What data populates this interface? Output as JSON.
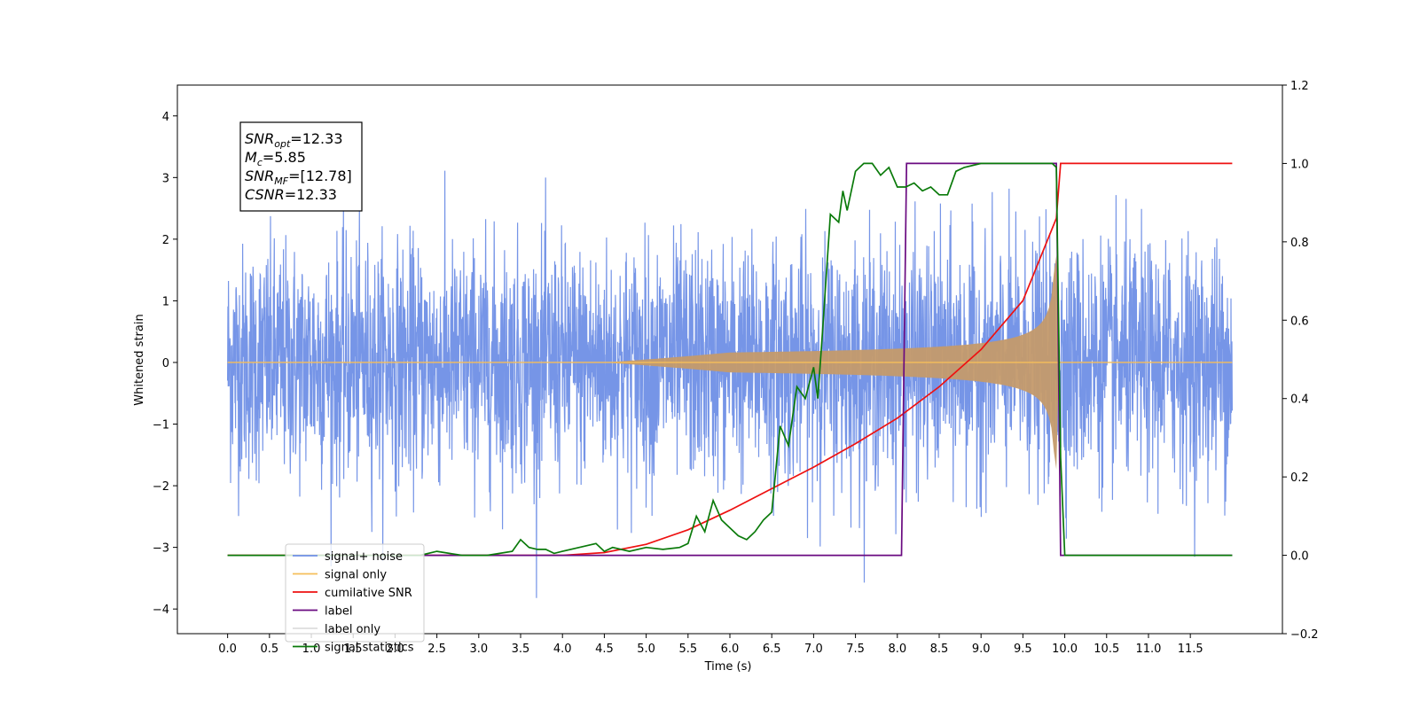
{
  "chart_data": {
    "type": "line",
    "title": "",
    "xlabel": "Time (s)",
    "ylabel": "Whitened strain",
    "xlim": [
      -0.6,
      12.6
    ],
    "ylim": [
      -4.4,
      4.5
    ],
    "y2lim": [
      -0.2,
      1.2
    ],
    "x_ticks": [
      "0.0",
      "0.5",
      "1.0",
      "1.5",
      "2.0",
      "2.5",
      "3.0",
      "3.5",
      "4.0",
      "4.5",
      "5.0",
      "5.5",
      "6.0",
      "6.5",
      "7.0",
      "7.5",
      "8.0",
      "8.5",
      "9.0",
      "9.5",
      "10.0",
      "10.5",
      "11.0",
      "11.5"
    ],
    "y_ticks": [
      "4",
      "3",
      "2",
      "1",
      "0",
      "−1",
      "−2",
      "−3",
      "−4"
    ],
    "y2_ticks": [
      "1.2",
      "1.0",
      "0.8",
      "0.6",
      "0.4",
      "0.2",
      "0.0",
      "−0.2"
    ],
    "grid": false,
    "legend_position": "lower-left",
    "info_box": {
      "lines": [
        {
          "base": "SNR",
          "sub": "opt",
          "rest": "=12.33"
        },
        {
          "base": "M",
          "sub": "c",
          "rest": "=5.85"
        },
        {
          "base": "SNR",
          "sub": "MF",
          "rest": "=[12.78]"
        },
        {
          "base": "CSNR",
          "sub": "",
          "rest": "=12.33"
        }
      ]
    },
    "series": [
      {
        "name": "signal+ noise",
        "color": "#6f8fe6",
        "axis": "left",
        "description_values": {
          "x_range": [
            0.0,
            12.0
          ],
          "amplitude_sigma": 1.0,
          "peak": 4.12
        }
      },
      {
        "name": "signal only",
        "color": "#f5be5a",
        "axis": "left",
        "description_values": {
          "chirp_start": 4.5,
          "merger": 9.9,
          "peak_amplitude": 1.1
        }
      },
      {
        "name": "cumilative SNR",
        "color": "#ee1111",
        "axis": "right",
        "x": [
          0.0,
          4.0,
          4.5,
          5.0,
          5.5,
          6.0,
          6.5,
          7.0,
          7.5,
          8.0,
          8.5,
          9.0,
          9.5,
          9.9,
          9.95,
          12.0
        ],
        "y": [
          0.0,
          0.0,
          0.007,
          0.028,
          0.065,
          0.115,
          0.17,
          0.225,
          0.285,
          0.35,
          0.43,
          0.525,
          0.65,
          0.86,
          1.0,
          1.0
        ]
      },
      {
        "name": "label",
        "color": "#6a0a80",
        "axis": "right",
        "x": [
          2.3,
          8.05,
          8.11,
          9.9,
          9.95,
          12.0
        ],
        "y": [
          0.0,
          0.0,
          1.0,
          1.0,
          0.0,
          0.0
        ]
      },
      {
        "name": "label only",
        "color": "#dddddd",
        "axis": "right",
        "x": [],
        "y": []
      },
      {
        "name": "signal statistics",
        "color": "#0a7a0a",
        "axis": "right",
        "x": [
          0.0,
          2.3,
          2.5,
          2.8,
          3.1,
          3.4,
          3.5,
          3.6,
          3.7,
          3.8,
          3.9,
          4.0,
          4.2,
          4.4,
          4.5,
          4.6,
          4.8,
          5.0,
          5.2,
          5.4,
          5.5,
          5.6,
          5.7,
          5.8,
          5.9,
          6.0,
          6.1,
          6.2,
          6.3,
          6.4,
          6.5,
          6.6,
          6.7,
          6.8,
          6.9,
          7.0,
          7.05,
          7.1,
          7.2,
          7.3,
          7.35,
          7.4,
          7.5,
          7.6,
          7.7,
          7.8,
          7.9,
          8.0,
          8.1,
          8.2,
          8.3,
          8.4,
          8.5,
          8.6,
          8.7,
          8.8,
          9.0,
          9.5,
          9.8,
          9.85,
          9.9,
          9.95,
          10.0,
          12.0
        ],
        "y": [
          0.0,
          0.0,
          0.01,
          0.0,
          0.0,
          0.01,
          0.04,
          0.02,
          0.015,
          0.015,
          0.005,
          0.01,
          0.02,
          0.03,
          0.01,
          0.02,
          0.01,
          0.02,
          0.015,
          0.02,
          0.03,
          0.1,
          0.06,
          0.14,
          0.09,
          0.07,
          0.05,
          0.04,
          0.06,
          0.09,
          0.11,
          0.33,
          0.28,
          0.43,
          0.4,
          0.48,
          0.4,
          0.55,
          0.87,
          0.85,
          0.93,
          0.88,
          0.98,
          1.0,
          1.0,
          0.97,
          0.99,
          0.94,
          0.94,
          0.95,
          0.93,
          0.94,
          0.92,
          0.92,
          0.98,
          0.99,
          1.0,
          1.0,
          1.0,
          1.0,
          0.99,
          0.25,
          0.0,
          0.0
        ]
      }
    ]
  }
}
